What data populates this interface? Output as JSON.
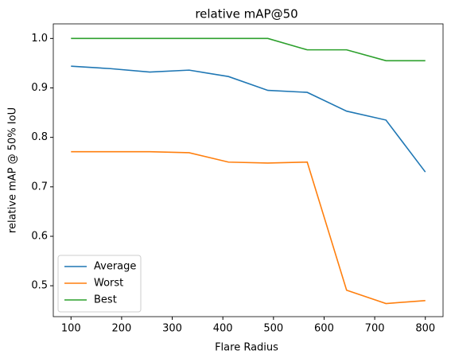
{
  "chart_data": {
    "type": "line",
    "title": "relative mAP@50",
    "x_label": "Flare Radius",
    "y_label": "relative mAP @ 50% IoU",
    "x": [
      100,
      177.78,
      255.56,
      333.33,
      411.11,
      488.89,
      566.67,
      644.44,
      722.22,
      800
    ],
    "series": [
      {
        "name": "Average",
        "color": "#1f77b4",
        "values": [
          0.944,
          0.939,
          0.932,
          0.936,
          0.923,
          0.895,
          0.891,
          0.853,
          0.835,
          0.73
        ]
      },
      {
        "name": "Worst",
        "color": "#ff7f0e",
        "values": [
          0.771,
          0.771,
          0.771,
          0.769,
          0.75,
          0.748,
          0.75,
          0.491,
          0.464,
          0.47
        ]
      },
      {
        "name": "Best",
        "color": "#2ca02c",
        "values": [
          1.0,
          1.0,
          1.0,
          1.0,
          1.0,
          1.0,
          0.977,
          0.977,
          0.955,
          0.955
        ]
      }
    ],
    "xlim": [
      65,
      835
    ],
    "ylim": [
      0.4375,
      1.0295
    ],
    "xticks": [
      100,
      200,
      300,
      400,
      500,
      600,
      700,
      800
    ],
    "yticks": [
      {
        "value": 0.5,
        "label": "0.5"
      },
      {
        "value": 0.6,
        "label": "0.6"
      },
      {
        "value": 0.7,
        "label": "0.7"
      },
      {
        "value": 0.8,
        "label": "0.8"
      },
      {
        "value": 0.9,
        "label": "0.9"
      },
      {
        "value": 1.0,
        "label": "1.0"
      }
    ],
    "legend": "lower left"
  }
}
